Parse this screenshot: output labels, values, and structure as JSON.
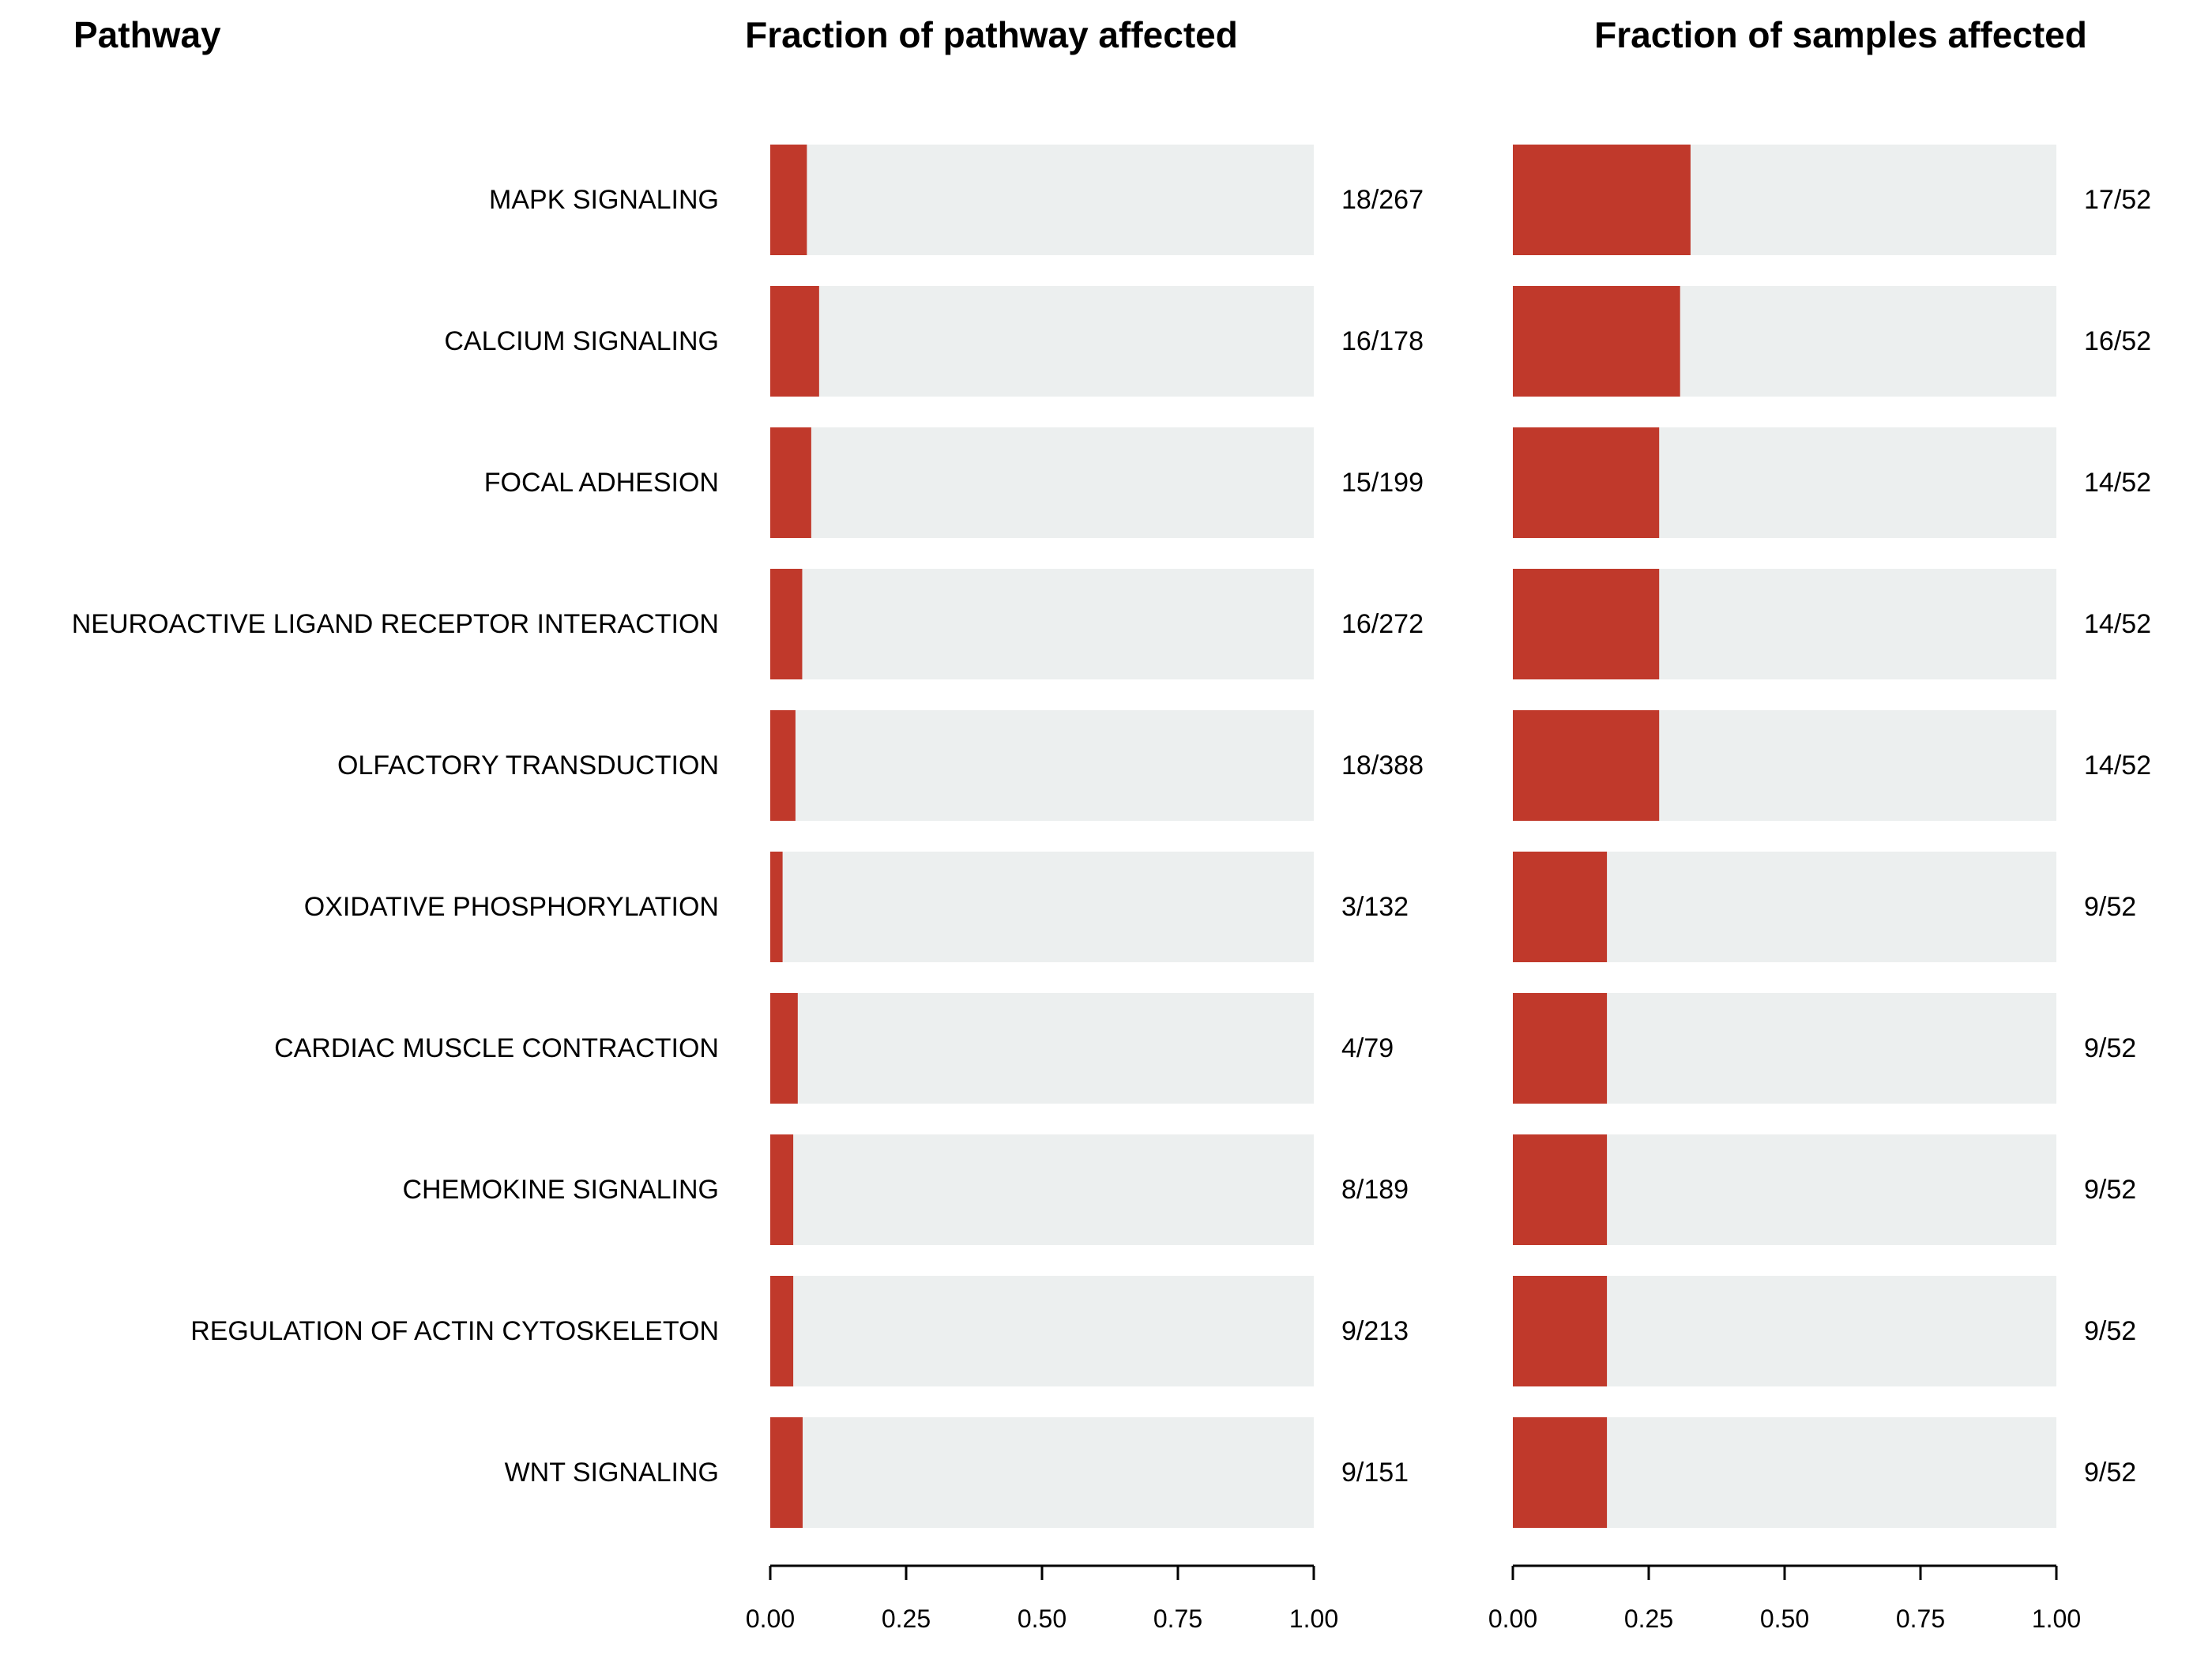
{
  "headers": {
    "pathway": "Pathway",
    "pathway_fraction": "Fraction of pathway affected",
    "sample_fraction": "Fraction of samples affected"
  },
  "colors": {
    "fill": "#c0392b",
    "background_bar": "#ecefef",
    "axis": "#000000"
  },
  "chart_data": [
    {
      "type": "bar",
      "orientation": "horizontal",
      "title": "Fraction of pathway affected",
      "categories": [
        "MAPK SIGNALING",
        "CALCIUM SIGNALING",
        "FOCAL ADHESION",
        "NEUROACTIVE LIGAND RECEPTOR INTERACTION",
        "OLFACTORY TRANSDUCTION",
        "OXIDATIVE PHOSPHORYLATION",
        "CARDIAC MUSCLE CONTRACTION",
        "CHEMOKINE SIGNALING",
        "REGULATION OF ACTIN CYTOSKELETON",
        "WNT SIGNALING"
      ],
      "values": [
        0.0674,
        0.0899,
        0.0754,
        0.0588,
        0.0464,
        0.0227,
        0.0506,
        0.0423,
        0.0423,
        0.0596
      ],
      "value_labels": [
        "18/267",
        "16/178",
        "15/199",
        "16/272",
        "18/388",
        "3/132",
        "4/79",
        "8/189",
        "9/213",
        "9/151"
      ],
      "xlim": [
        0,
        1
      ],
      "xticks": [
        "0.00",
        "0.25",
        "0.50",
        "0.75",
        "1.00"
      ],
      "grid": false
    },
    {
      "type": "bar",
      "orientation": "horizontal",
      "title": "Fraction of samples affected",
      "categories": [
        "MAPK SIGNALING",
        "CALCIUM SIGNALING",
        "FOCAL ADHESION",
        "NEUROACTIVE LIGAND RECEPTOR INTERACTION",
        "OLFACTORY TRANSDUCTION",
        "OXIDATIVE PHOSPHORYLATION",
        "CARDIAC MUSCLE CONTRACTION",
        "CHEMOKINE SIGNALING",
        "REGULATION OF ACTIN CYTOSKELETON",
        "WNT SIGNALING"
      ],
      "values": [
        0.3269,
        0.3077,
        0.2692,
        0.2692,
        0.2692,
        0.1731,
        0.1731,
        0.1731,
        0.1731,
        0.1731
      ],
      "value_labels": [
        "17/52",
        "16/52",
        "14/52",
        "14/52",
        "14/52",
        "9/52",
        "9/52",
        "9/52",
        "9/52",
        "9/52"
      ],
      "xlim": [
        0,
        1
      ],
      "xticks": [
        "0.00",
        "0.25",
        "0.50",
        "0.75",
        "1.00"
      ],
      "grid": false
    }
  ]
}
